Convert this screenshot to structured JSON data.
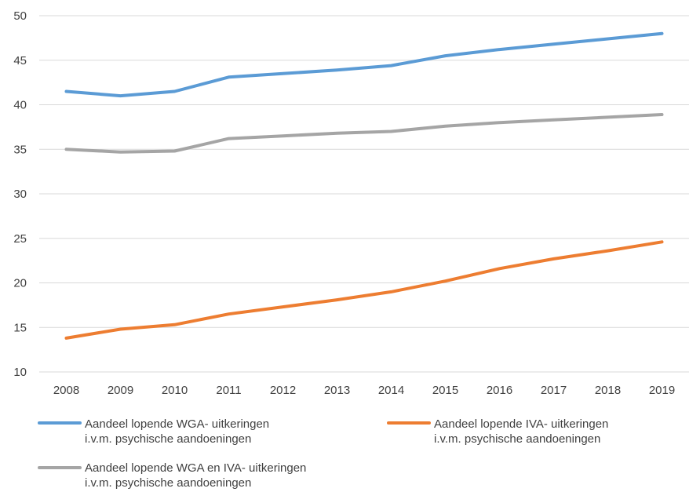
{
  "chart_data": {
    "type": "line",
    "title": "",
    "xlabel": "",
    "ylabel": "",
    "x": [
      "2008",
      "2009",
      "2010",
      "2011",
      "2012",
      "2013",
      "2014",
      "2015",
      "2016",
      "2017",
      "2018",
      "2019"
    ],
    "ylim": [
      10,
      50
    ],
    "yticks": [
      "10",
      "15",
      "20",
      "25",
      "30",
      "35",
      "40",
      "45",
      "50"
    ],
    "grid": true,
    "legend_position": "bottom",
    "series": [
      {
        "name_line1": "Aandeel lopende WGA- uitkeringen",
        "name_line2": "i.v.m. psychische aandoeningen",
        "color": "#5B9BD5",
        "values": [
          41.5,
          41.0,
          41.5,
          43.1,
          43.5,
          43.9,
          44.4,
          45.5,
          46.2,
          46.8,
          47.4,
          48.0
        ]
      },
      {
        "name_line1": "Aandeel lopende IVA- uitkeringen",
        "name_line2": "i.v.m. psychische aandoeningen",
        "color": "#ED7D31",
        "values": [
          13.8,
          14.8,
          15.3,
          16.5,
          17.3,
          18.1,
          19.0,
          20.2,
          21.6,
          22.7,
          23.6,
          24.6
        ]
      },
      {
        "name_line1": "Aandeel lopende WGA en IVA- uitkeringen",
        "name_line2": "i.v.m. psychische aandoeningen",
        "color": "#A5A5A5",
        "values": [
          35.0,
          34.7,
          34.8,
          36.2,
          36.5,
          36.8,
          37.0,
          37.6,
          38.0,
          38.3,
          38.6,
          38.9
        ]
      }
    ]
  }
}
